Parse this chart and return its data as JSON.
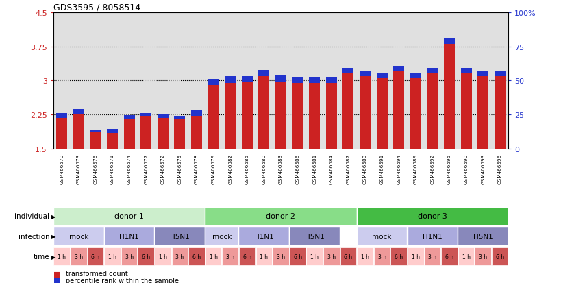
{
  "title": "GDS3595 / 8058514",
  "samples": [
    "GSM466570",
    "GSM466573",
    "GSM466576",
    "GSM466571",
    "GSM466574",
    "GSM466577",
    "GSM466572",
    "GSM466575",
    "GSM466578",
    "GSM466579",
    "GSM466582",
    "GSM466585",
    "GSM466580",
    "GSM466583",
    "GSM466586",
    "GSM466581",
    "GSM466584",
    "GSM466587",
    "GSM466588",
    "GSM466591",
    "GSM466594",
    "GSM466589",
    "GSM466592",
    "GSM466595",
    "GSM466590",
    "GSM466593",
    "GSM466596"
  ],
  "red_values": [
    2.18,
    2.25,
    1.88,
    1.85,
    2.15,
    2.22,
    2.18,
    2.15,
    2.22,
    2.9,
    2.95,
    2.97,
    3.1,
    2.98,
    2.95,
    2.95,
    2.95,
    3.15,
    3.1,
    3.05,
    3.2,
    3.05,
    3.15,
    3.8,
    3.15,
    3.1,
    3.1
  ],
  "blue_values": [
    0.1,
    0.13,
    0.05,
    0.09,
    0.09,
    0.07,
    0.07,
    0.06,
    0.12,
    0.12,
    0.14,
    0.13,
    0.13,
    0.13,
    0.11,
    0.11,
    0.11,
    0.12,
    0.12,
    0.12,
    0.12,
    0.12,
    0.12,
    0.12,
    0.12,
    0.12,
    0.12
  ],
  "ymin": 1.5,
  "ymax": 4.5,
  "yticks_left": [
    1.5,
    2.25,
    3.0,
    3.75,
    4.5
  ],
  "ytick_labels_left": [
    "1.5",
    "2.25",
    "3",
    "3.75",
    "4.5"
  ],
  "yticks_right_pct": [
    0,
    25,
    50,
    75,
    100
  ],
  "ytick_labels_right": [
    "0",
    "25",
    "50",
    "75",
    "100%"
  ],
  "hlines": [
    2.25,
    3.0,
    3.75
  ],
  "bar_color_red": "#cc2222",
  "bar_color_blue": "#2233cc",
  "plot_bg": "#e0e0e0",
  "donor_colors": [
    "#cceecc",
    "#88dd88",
    "#44bb44"
  ],
  "donor_labels": [
    "donor 1",
    "donor 2",
    "donor 3"
  ],
  "donor_ranges": [
    [
      0,
      9
    ],
    [
      9,
      18
    ],
    [
      18,
      27
    ]
  ],
  "infection_groups": [
    [
      0,
      3,
      "mock",
      "#ccccee"
    ],
    [
      3,
      6,
      "H1N1",
      "#aaaadd"
    ],
    [
      6,
      9,
      "H5N1",
      "#8888bb"
    ],
    [
      9,
      11,
      "mock",
      "#ccccee"
    ],
    [
      11,
      14,
      "H1N1",
      "#aaaadd"
    ],
    [
      14,
      17,
      "H5N1",
      "#8888bb"
    ],
    [
      18,
      21,
      "mock",
      "#ccccee"
    ],
    [
      21,
      24,
      "H1N1",
      "#aaaadd"
    ],
    [
      24,
      27,
      "H5N1",
      "#8888bb"
    ]
  ],
  "time_labels": [
    "1 h",
    "3 h",
    "6 h",
    "1 h",
    "3 h",
    "6 h",
    "1 h",
    "3 h",
    "6 h",
    "1 h",
    "3 h",
    "6 h",
    "1 h",
    "3 h",
    "6 h",
    "1 h",
    "3 h",
    "6 h",
    "1 h",
    "3 h",
    "6 h",
    "1 h",
    "3 h",
    "6 h",
    "1 h",
    "3 h",
    "6 h"
  ],
  "time_colors": [
    "#ffcccc",
    "#ee9999",
    "#cc5555",
    "#ffcccc",
    "#ee9999",
    "#cc5555",
    "#ffcccc",
    "#ee9999",
    "#cc5555",
    "#ffcccc",
    "#ee9999",
    "#cc5555",
    "#ffcccc",
    "#ee9999",
    "#cc5555",
    "#ffcccc",
    "#ee9999",
    "#cc5555",
    "#ffcccc",
    "#ee9999",
    "#cc5555",
    "#ffcccc",
    "#ee9999",
    "#cc5555",
    "#ffcccc",
    "#ee9999",
    "#cc5555"
  ],
  "row_labels": [
    "individual",
    "infection",
    "time"
  ],
  "legend_red_label": "transformed count",
  "legend_blue_label": "percentile rank within the sample"
}
